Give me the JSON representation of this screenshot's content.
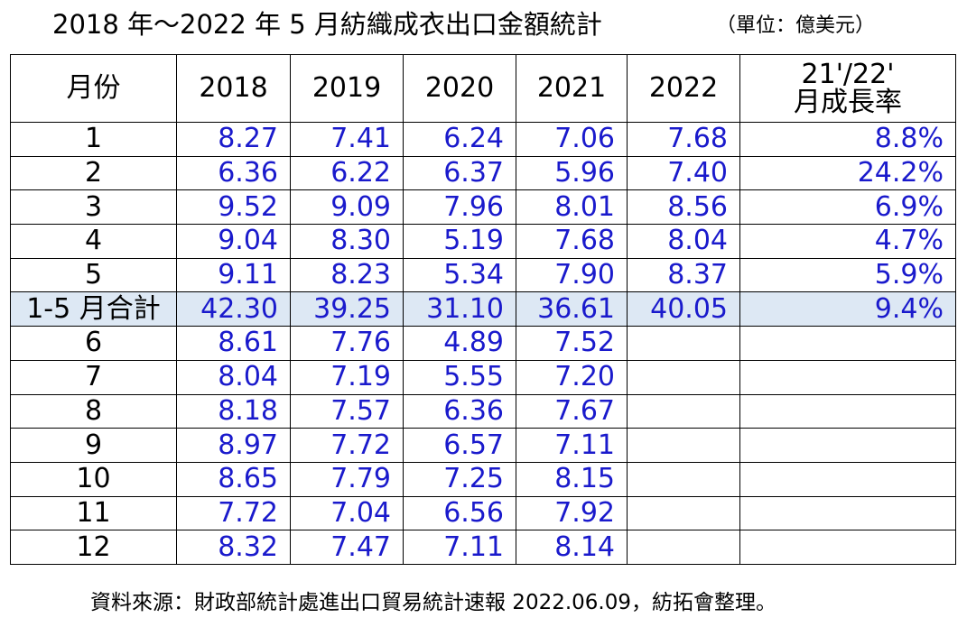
{
  "title": "2018 年～2022 年 5 月紡織成衣出口金額統計",
  "unit": "（單位：億美元）",
  "headers": [
    "月份",
    "2018",
    "2019",
    "2020",
    "2021",
    "2022"
  ],
  "growth_header_line1": "21'/22'",
  "growth_header_line2": "月成長率",
  "rows": [
    {
      "month": "1",
      "y2018": "8.27",
      "y2019": "7.41",
      "y2020": "6.24",
      "y2021": "7.06",
      "y2022": "7.68",
      "growth": "8.8%"
    },
    {
      "month": "2",
      "y2018": "6.36",
      "y2019": "6.22",
      "y2020": "6.37",
      "y2021": "5.96",
      "y2022": "7.40",
      "growth": "24.2%"
    },
    {
      "month": "3",
      "y2018": "9.52",
      "y2019": "9.09",
      "y2020": "7.96",
      "y2021": "8.01",
      "y2022": "8.56",
      "growth": "6.9%"
    },
    {
      "month": "4",
      "y2018": "9.04",
      "y2019": "8.30",
      "y2020": "5.19",
      "y2021": "7.68",
      "y2022": "8.04",
      "growth": "4.7%"
    },
    {
      "month": "5",
      "y2018": "9.11",
      "y2019": "8.23",
      "y2020": "5.34",
      "y2021": "7.90",
      "y2022": "8.37",
      "growth": "5.9%"
    },
    {
      "month": "1-5 月合計",
      "y2018": "42.30",
      "y2019": "39.25",
      "y2020": "31.10",
      "y2021": "36.61",
      "y2022": "40.05",
      "growth": "9.4%"
    },
    {
      "month": "6",
      "y2018": "8.61",
      "y2019": "7.76",
      "y2020": "4.89",
      "y2021": "7.52",
      "y2022": "",
      "growth": ""
    },
    {
      "month": "7",
      "y2018": "8.04",
      "y2019": "7.19",
      "y2020": "5.55",
      "y2021": "7.20",
      "y2022": "",
      "growth": ""
    },
    {
      "month": "8",
      "y2018": "8.18",
      "y2019": "7.57",
      "y2020": "6.36",
      "y2021": "7.67",
      "y2022": "",
      "growth": ""
    },
    {
      "month": "9",
      "y2018": "8.97",
      "y2019": "7.72",
      "y2020": "6.57",
      "y2021": "7.11",
      "y2022": "",
      "growth": ""
    },
    {
      "month": "10",
      "y2018": "8.65",
      "y2019": "7.79",
      "y2020": "7.25",
      "y2021": "8.15",
      "y2022": "",
      "growth": ""
    },
    {
      "month": "11",
      "y2018": "7.72",
      "y2019": "7.04",
      "y2020": "6.56",
      "y2021": "7.92",
      "y2022": "",
      "growth": ""
    },
    {
      "month": "12",
      "y2018": "8.32",
      "y2019": "7.47",
      "y2020": "7.11",
      "y2021": "8.14",
      "y2022": "",
      "growth": ""
    }
  ],
  "footer": "資料來源：財政部統計處進出口貿易統計速報 2022.06.09，紡拓會整理。",
  "colors": {
    "value_text": "#1a1acc",
    "summary_row_bg": "#dde8f4",
    "border": "#000000"
  }
}
